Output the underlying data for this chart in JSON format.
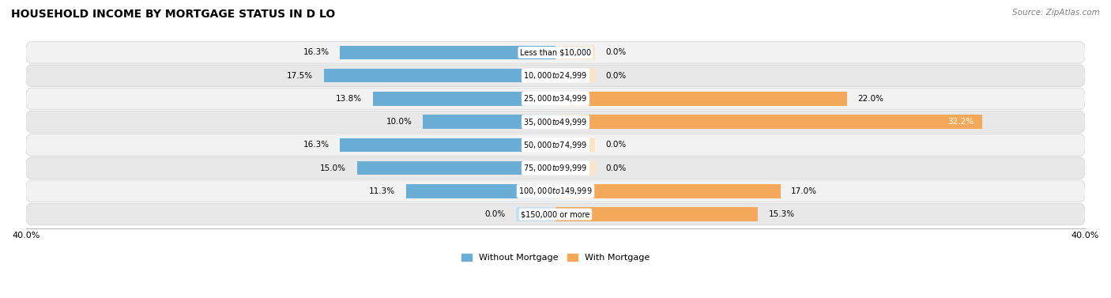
{
  "title": "HOUSEHOLD INCOME BY MORTGAGE STATUS IN D LO",
  "source": "Source: ZipAtlas.com",
  "categories": [
    "Less than $10,000",
    "$10,000 to $24,999",
    "$25,000 to $34,999",
    "$35,000 to $49,999",
    "$50,000 to $74,999",
    "$75,000 to $99,999",
    "$100,000 to $149,999",
    "$150,000 or more"
  ],
  "without_mortgage": [
    16.3,
    17.5,
    13.8,
    10.0,
    16.3,
    15.0,
    11.3,
    0.0
  ],
  "with_mortgage": [
    0.0,
    0.0,
    22.0,
    32.2,
    0.0,
    0.0,
    17.0,
    15.3
  ],
  "x_min": -40.0,
  "x_max": 40.0,
  "color_without": "#6aaed6",
  "color_with": "#f4a95a",
  "color_without_zero": "#c8dff0",
  "color_with_zero": "#fce4c8",
  "legend_without": "Without Mortgage",
  "legend_with": "With Mortgage",
  "title_fontsize": 10,
  "bar_label_fontsize": 7.5,
  "source_fontsize": 7.5
}
